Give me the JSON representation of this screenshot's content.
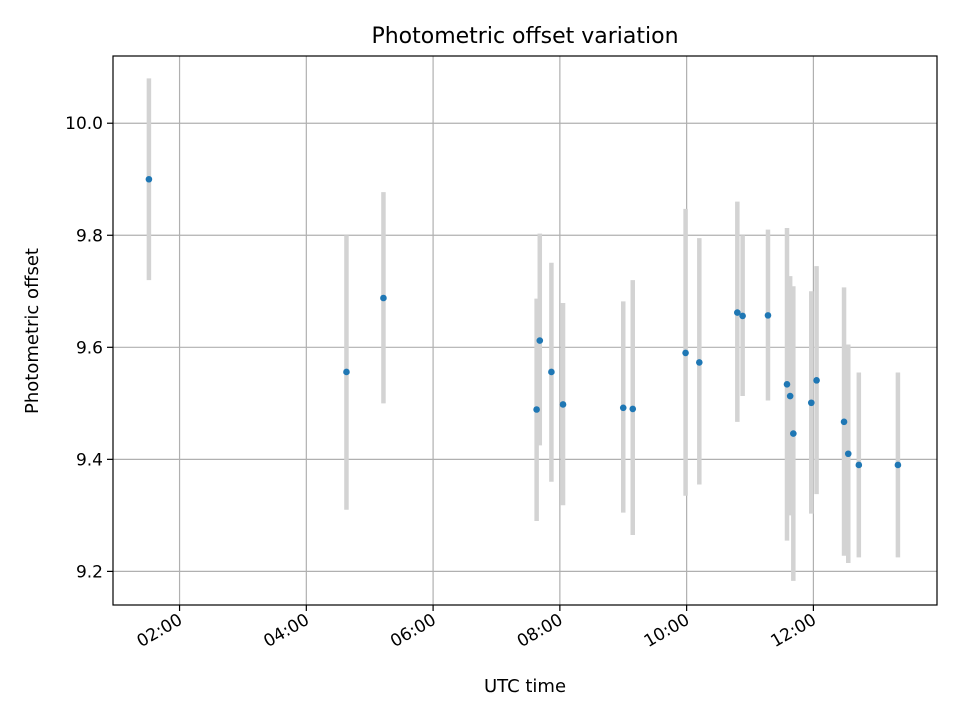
{
  "chart_data": {
    "type": "scatter",
    "title": "Photometric offset variation",
    "xlabel": "UTC time",
    "ylabel": "Photometric offset",
    "x_axis": {
      "kind": "time",
      "range": [
        "00:57",
        "13:57"
      ],
      "ticks": [
        "02:00",
        "04:00",
        "06:00",
        "08:00",
        "10:00",
        "12:00"
      ]
    },
    "y_axis": {
      "range": [
        9.14,
        10.12
      ],
      "ticks": [
        "9.2",
        "9.4",
        "9.6",
        "9.8",
        "10.0"
      ]
    },
    "grid": true,
    "colors": {
      "point": "#1f77b4",
      "errorbar": "#d3d3d3"
    },
    "points": [
      {
        "time": "01:31",
        "y": 9.9,
        "yerr_low": 9.72,
        "yerr_high": 10.08
      },
      {
        "time": "04:38",
        "y": 9.556,
        "yerr_low": 9.31,
        "yerr_high": 9.8
      },
      {
        "time": "05:13",
        "y": 9.688,
        "yerr_low": 9.5,
        "yerr_high": 9.877
      },
      {
        "time": "07:38",
        "y": 9.489,
        "yerr_low": 9.29,
        "yerr_high": 9.687
      },
      {
        "time": "07:41",
        "y": 9.612,
        "yerr_low": 9.425,
        "yerr_high": 9.803
      },
      {
        "time": "07:52",
        "y": 9.556,
        "yerr_low": 9.36,
        "yerr_high": 9.751
      },
      {
        "time": "08:03",
        "y": 9.498,
        "yerr_low": 9.318,
        "yerr_high": 9.679
      },
      {
        "time": "09:00",
        "y": 9.492,
        "yerr_low": 9.305,
        "yerr_high": 9.682
      },
      {
        "time": "09:09",
        "y": 9.49,
        "yerr_low": 9.265,
        "yerr_high": 9.72
      },
      {
        "time": "09:59",
        "y": 9.59,
        "yerr_low": 9.335,
        "yerr_high": 9.847
      },
      {
        "time": "10:12",
        "y": 9.573,
        "yerr_low": 9.355,
        "yerr_high": 9.795
      },
      {
        "time": "10:48",
        "y": 9.662,
        "yerr_low": 9.467,
        "yerr_high": 9.86
      },
      {
        "time": "10:53",
        "y": 9.656,
        "yerr_low": 9.513,
        "yerr_high": 9.8
      },
      {
        "time": "11:17",
        "y": 9.657,
        "yerr_low": 9.505,
        "yerr_high": 9.81
      },
      {
        "time": "11:35",
        "y": 9.534,
        "yerr_low": 9.255,
        "yerr_high": 9.813
      },
      {
        "time": "11:38",
        "y": 9.513,
        "yerr_low": 9.3,
        "yerr_high": 9.727
      },
      {
        "time": "11:41",
        "y": 9.446,
        "yerr_low": 9.183,
        "yerr_high": 9.709
      },
      {
        "time": "11:58",
        "y": 9.501,
        "yerr_low": 9.303,
        "yerr_high": 9.7
      },
      {
        "time": "12:03",
        "y": 9.541,
        "yerr_low": 9.338,
        "yerr_high": 9.745
      },
      {
        "time": "12:29",
        "y": 9.467,
        "yerr_low": 9.228,
        "yerr_high": 9.707
      },
      {
        "time": "12:33",
        "y": 9.41,
        "yerr_low": 9.215,
        "yerr_high": 9.605
      },
      {
        "time": "12:43",
        "y": 9.39,
        "yerr_low": 9.225,
        "yerr_high": 9.555
      },
      {
        "time": "13:20",
        "y": 9.39,
        "yerr_low": 9.225,
        "yerr_high": 9.555
      }
    ]
  }
}
